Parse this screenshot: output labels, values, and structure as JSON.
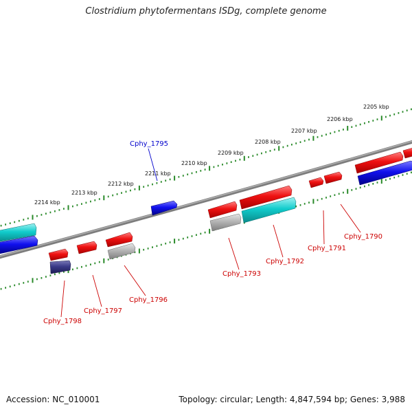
{
  "title": "Clostridium phytofermentans ISDg, complete genome",
  "footer": {
    "accession": "Accession: NC_010001",
    "topology": "Topology: circular; Length: 4,847,594 bp; Genes: 3,988"
  },
  "colors": {
    "backbone": "#888888",
    "ruler": "#2a8a2a",
    "red": "#ee1111",
    "blue": "#1111ee",
    "cyan": "#11cccc",
    "gray": "#aaaaaa",
    "navy": "#3a3a88",
    "label_red": "#cc0000",
    "label_blue": "#0000cc"
  },
  "ruler_labels": [
    "2214 kbp",
    "2213 kbp",
    "2212 kbp",
    "2211 kbp",
    "2210 kbp",
    "2209 kbp",
    "2208 kbp",
    "2207 kbp",
    "2206 kbp",
    "2205 kbp"
  ],
  "gene_labels": [
    {
      "text": "Cphy_1795",
      "color": "blue"
    },
    {
      "text": "Cphy_1798",
      "color": "red"
    },
    {
      "text": "Cphy_1797",
      "color": "red"
    },
    {
      "text": "Cphy_1796",
      "color": "red"
    },
    {
      "text": "Cphy_1793",
      "color": "red"
    },
    {
      "text": "Cphy_1792",
      "color": "red"
    },
    {
      "text": "Cphy_1791",
      "color": "red"
    },
    {
      "text": "Cphy_1790",
      "color": "red"
    }
  ]
}
